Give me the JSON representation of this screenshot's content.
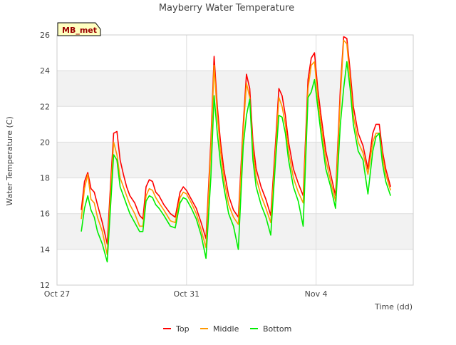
{
  "chart_data": {
    "type": "line",
    "title": "Mayberry Water Temperature",
    "xlabel": "Time (dd)",
    "ylabel": "Water Temperature (C)",
    "xlim": [
      0,
      11
    ],
    "ylim": [
      12,
      26
    ],
    "yticks": [
      12,
      14,
      16,
      18,
      20,
      22,
      24,
      26
    ],
    "xticks": [
      {
        "value": 0,
        "label": "Oct 27"
      },
      {
        "value": 4,
        "label": "Oct 31"
      },
      {
        "value": 8,
        "label": "Nov 4"
      }
    ],
    "grid": true,
    "banded_background": true,
    "annotation": "MB_met",
    "legend_position": "bottom",
    "series": [
      {
        "name": "Top",
        "color": "#ff0000",
        "x": [
          0.75,
          0.85,
          0.95,
          1.05,
          1.15,
          1.25,
          1.4,
          1.55,
          1.65,
          1.75,
          1.85,
          1.95,
          2.05,
          2.15,
          2.25,
          2.4,
          2.55,
          2.65,
          2.75,
          2.85,
          2.95,
          3.05,
          3.15,
          3.3,
          3.5,
          3.65,
          3.8,
          3.9,
          4.0,
          4.15,
          4.3,
          4.45,
          4.6,
          4.75,
          4.85,
          4.95,
          5.05,
          5.15,
          5.3,
          5.45,
          5.6,
          5.75,
          5.85,
          5.95,
          6.05,
          6.15,
          6.3,
          6.45,
          6.6,
          6.75,
          6.85,
          6.95,
          7.05,
          7.15,
          7.3,
          7.45,
          7.6,
          7.75,
          7.85,
          7.95,
          8.05,
          8.15,
          8.3,
          8.45,
          8.6,
          8.75,
          8.85,
          8.95,
          9.05,
          9.15,
          9.3,
          9.45,
          9.6,
          9.75,
          9.85,
          9.95,
          10.05,
          10.15,
          10.3
        ],
        "values": [
          16.2,
          17.8,
          18.3,
          17.4,
          17.2,
          16.5,
          15.5,
          14.3,
          17.5,
          20.5,
          20.6,
          19.0,
          18.2,
          17.5,
          17.0,
          16.6,
          15.9,
          15.7,
          17.5,
          17.9,
          17.8,
          17.2,
          17.0,
          16.5,
          16.0,
          15.8,
          17.2,
          17.5,
          17.3,
          16.8,
          16.3,
          15.5,
          14.6,
          20.0,
          24.8,
          22.0,
          20.0,
          18.5,
          17.0,
          16.2,
          15.8,
          21.0,
          23.8,
          23.0,
          20.0,
          18.5,
          17.5,
          16.8,
          15.9,
          20.0,
          23.0,
          22.6,
          21.5,
          20.0,
          18.5,
          17.7,
          17.0,
          23.5,
          24.7,
          25.0,
          23.0,
          21.5,
          19.5,
          18.2,
          17.0,
          23.0,
          25.9,
          25.8,
          24.0,
          22.0,
          20.5,
          19.8,
          18.5,
          20.5,
          21.0,
          21.0,
          19.5,
          18.5,
          17.5
        ]
      },
      {
        "name": "Middle",
        "color": "#ff9900",
        "x": [
          0.75,
          0.85,
          0.95,
          1.05,
          1.15,
          1.25,
          1.4,
          1.55,
          1.65,
          1.75,
          1.85,
          1.95,
          2.05,
          2.15,
          2.25,
          2.4,
          2.55,
          2.65,
          2.75,
          2.85,
          2.95,
          3.05,
          3.15,
          3.3,
          3.5,
          3.65,
          3.8,
          3.9,
          4.0,
          4.15,
          4.3,
          4.45,
          4.6,
          4.75,
          4.85,
          4.95,
          5.05,
          5.15,
          5.3,
          5.45,
          5.6,
          5.75,
          5.85,
          5.95,
          6.05,
          6.15,
          6.3,
          6.45,
          6.6,
          6.75,
          6.85,
          6.95,
          7.05,
          7.15,
          7.3,
          7.45,
          7.6,
          7.75,
          7.85,
          7.95,
          8.05,
          8.15,
          8.3,
          8.45,
          8.6,
          8.75,
          8.85,
          8.95,
          9.05,
          9.15,
          9.3,
          9.45,
          9.6,
          9.75,
          9.85,
          9.95,
          10.05,
          10.15,
          10.3
        ],
        "values": [
          15.7,
          17.4,
          18.2,
          16.8,
          16.6,
          15.8,
          15.0,
          13.7,
          17.0,
          20.0,
          19.3,
          18.0,
          17.5,
          17.0,
          16.5,
          16.0,
          15.3,
          15.3,
          17.0,
          17.4,
          17.3,
          16.9,
          16.6,
          16.2,
          15.6,
          15.5,
          16.9,
          17.2,
          17.1,
          16.6,
          16.0,
          15.1,
          14.1,
          19.6,
          24.3,
          21.5,
          19.5,
          18.0,
          16.5,
          15.8,
          15.4,
          20.6,
          23.3,
          22.5,
          19.5,
          18.0,
          17.0,
          16.3,
          15.5,
          19.5,
          22.5,
          22.0,
          21.0,
          19.5,
          18.0,
          17.2,
          16.6,
          23.0,
          24.3,
          24.5,
          22.5,
          21.0,
          19.0,
          17.8,
          16.7,
          22.5,
          25.7,
          25.5,
          23.5,
          21.5,
          20.0,
          19.4,
          18.2,
          20.0,
          20.5,
          20.5,
          19.2,
          18.2,
          17.3
        ]
      },
      {
        "name": "Bottom",
        "color": "#00ee00",
        "x": [
          0.75,
          0.85,
          0.95,
          1.05,
          1.15,
          1.25,
          1.4,
          1.55,
          1.65,
          1.75,
          1.85,
          1.95,
          2.05,
          2.15,
          2.25,
          2.4,
          2.55,
          2.65,
          2.75,
          2.85,
          2.95,
          3.05,
          3.15,
          3.3,
          3.5,
          3.65,
          3.8,
          3.9,
          4.0,
          4.15,
          4.3,
          4.45,
          4.6,
          4.75,
          4.85,
          4.95,
          5.05,
          5.15,
          5.3,
          5.45,
          5.6,
          5.75,
          5.85,
          5.95,
          6.05,
          6.15,
          6.3,
          6.45,
          6.6,
          6.75,
          6.85,
          6.95,
          7.05,
          7.15,
          7.3,
          7.45,
          7.6,
          7.75,
          7.85,
          7.95,
          8.05,
          8.15,
          8.3,
          8.45,
          8.6,
          8.75,
          8.85,
          8.95,
          9.05,
          9.15,
          9.3,
          9.45,
          9.6,
          9.75,
          9.85,
          9.95,
          10.05,
          10.15,
          10.3
        ],
        "values": [
          15.0,
          16.3,
          17.0,
          16.2,
          15.8,
          15.0,
          14.3,
          13.3,
          16.3,
          19.3,
          19.0,
          17.5,
          17.0,
          16.5,
          16.0,
          15.5,
          15.0,
          15.0,
          16.7,
          17.0,
          16.9,
          16.5,
          16.3,
          15.9,
          15.3,
          15.2,
          16.6,
          16.9,
          16.8,
          16.3,
          15.7,
          14.8,
          13.5,
          18.0,
          22.6,
          20.5,
          18.8,
          17.5,
          16.0,
          15.3,
          14.0,
          19.8,
          21.5,
          22.4,
          19.0,
          17.5,
          16.5,
          15.8,
          14.8,
          19.0,
          21.5,
          21.4,
          20.5,
          19.0,
          17.5,
          16.7,
          15.3,
          22.5,
          22.8,
          23.5,
          22.0,
          20.5,
          18.5,
          17.5,
          16.3,
          21.0,
          23.0,
          24.5,
          23.0,
          21.0,
          19.5,
          19.0,
          17.1,
          19.5,
          20.3,
          20.5,
          18.8,
          17.8,
          17.0
        ]
      }
    ]
  }
}
